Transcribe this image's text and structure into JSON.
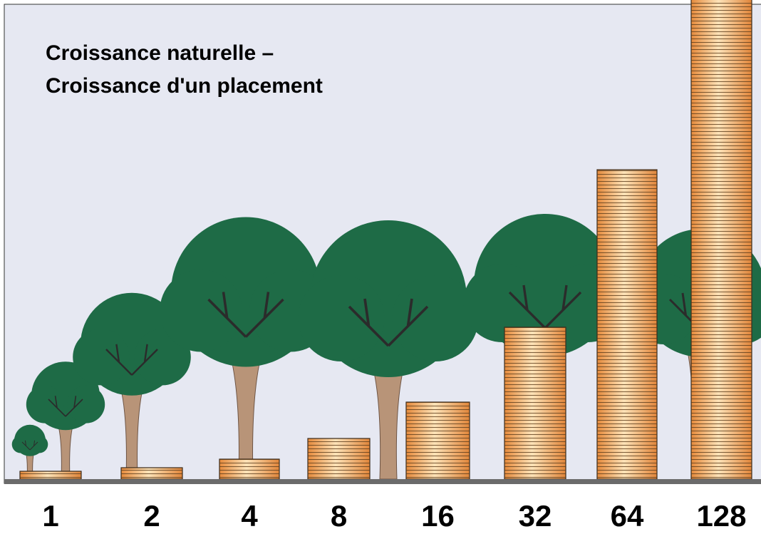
{
  "header": {
    "title_lines": [
      "Croissance naturelle –",
      "Croissance d'un placement"
    ]
  },
  "labels": [
    "1",
    "2",
    "4",
    "8",
    "16",
    "32",
    "64",
    "128"
  ]
}
